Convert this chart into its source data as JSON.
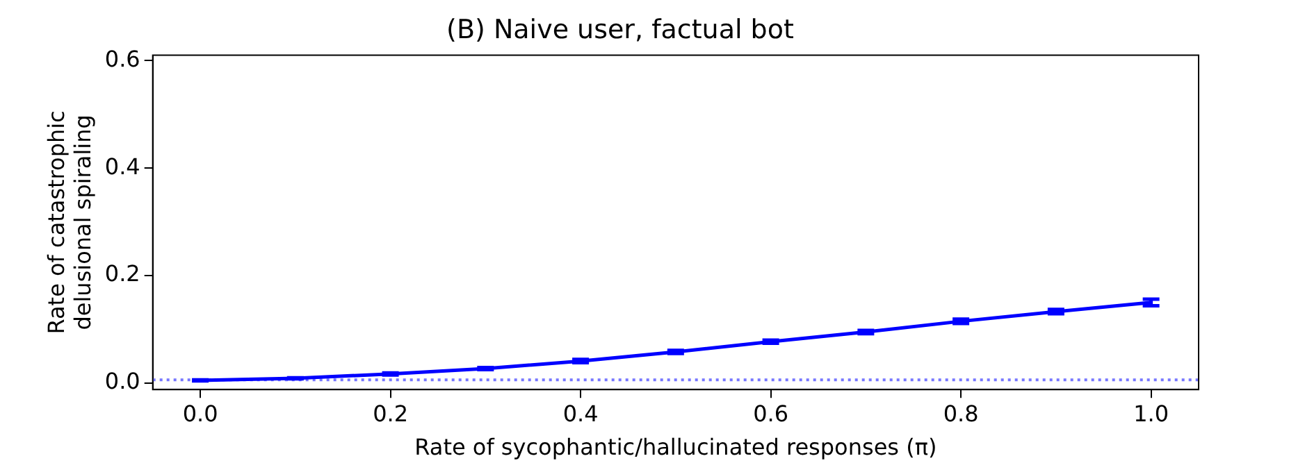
{
  "chart_data": {
    "type": "line",
    "title": "(B) Naive user, factual bot",
    "xlabel": "Rate of sycophantic/hallucinated responses (π)",
    "ylabel": "Rate of catastrophic\ndelusional spiraling",
    "x": [
      0,
      0.1,
      0.2,
      0.3,
      0.4,
      0.5,
      0.6,
      0.7,
      0.8,
      0.9,
      1.0
    ],
    "series": [
      {
        "color": "#0000ff",
        "values": [
          0.005,
          0.009,
          0.017,
          0.027,
          0.041,
          0.058,
          0.077,
          0.095,
          0.115,
          0.133,
          0.15
        ],
        "errors": [
          0.001,
          0.001,
          0.002,
          0.002,
          0.003,
          0.003,
          0.003,
          0.003,
          0.004,
          0.004,
          0.006
        ]
      }
    ],
    "xlim": [
      -0.05,
      1.05
    ],
    "ylim": [
      -0.012,
      0.61
    ],
    "xticks": [
      {
        "value": 0,
        "label": "0.0"
      },
      {
        "value": 0.2,
        "label": "0.2"
      },
      {
        "value": 0.4,
        "label": "0.4"
      },
      {
        "value": 0.6,
        "label": "0.6"
      },
      {
        "value": 0.8,
        "label": "0.8"
      },
      {
        "value": 1.0,
        "label": "1.0"
      }
    ],
    "yticks": [
      {
        "value": 0,
        "label": "0.0"
      },
      {
        "value": 0.2,
        "label": "0.2"
      },
      {
        "value": 0.4,
        "label": "0.4"
      },
      {
        "value": 0.6,
        "label": "0.6"
      }
    ],
    "ref_lines": [
      {
        "axis": "y",
        "value": 0.006,
        "color": "#7777ff",
        "line_style": "dotted"
      }
    ],
    "grid": false,
    "legend": false,
    "marker": "none",
    "line_style": "solid"
  }
}
